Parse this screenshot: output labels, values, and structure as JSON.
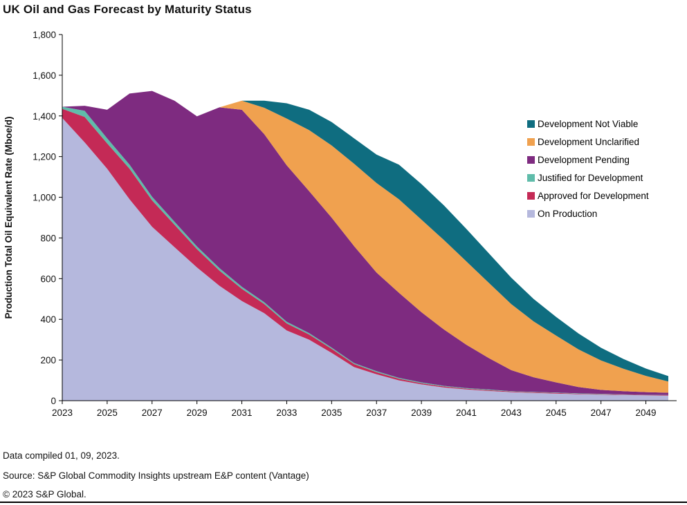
{
  "footer": {
    "line1": "Data compiled 01, 09, 2023.",
    "line2": "Source: S&P Global Commodity Insights upstream E&P content (Vantage)",
    "line3": "© 2023 S&P Global."
  },
  "chart_data": {
    "type": "area",
    "stacked": true,
    "title": "UK Oil and Gas Forecast by Maturity Status",
    "ylabel": "Production Total Oil Equivalent Rate (Mboe/d)",
    "xlabel": "",
    "ylim": [
      0,
      1800
    ],
    "y_tick_step": 200,
    "y_tick_labels": [
      "0",
      "200",
      "400",
      "600",
      "800",
      "1,000",
      "1,200",
      "1,400",
      "1,600",
      "1,800"
    ],
    "x": [
      2023,
      2024,
      2025,
      2026,
      2027,
      2028,
      2029,
      2030,
      2031,
      2032,
      2033,
      2034,
      2035,
      2036,
      2037,
      2038,
      2039,
      2040,
      2041,
      2042,
      2043,
      2044,
      2045,
      2046,
      2047,
      2048,
      2049,
      2050
    ],
    "x_tick_labels": [
      "2023",
      "2025",
      "2027",
      "2029",
      "2031",
      "2033",
      "2035",
      "2037",
      "2039",
      "2041",
      "2043",
      "2045",
      "2047",
      "2049"
    ],
    "grid": false,
    "legend_position": "right",
    "series": [
      {
        "name": "On Production",
        "color": "#b5b8dd",
        "values": [
          1390,
          1270,
          1140,
          990,
          855,
          755,
          655,
          565,
          490,
          430,
          345,
          300,
          235,
          165,
          130,
          100,
          80,
          65,
          55,
          48,
          42,
          38,
          35,
          32,
          30,
          28,
          26,
          25
        ]
      },
      {
        "name": "Approved for Development",
        "color": "#c42a56",
        "values": [
          45,
          125,
          125,
          150,
          130,
          110,
          90,
          75,
          60,
          45,
          35,
          25,
          20,
          15,
          10,
          8,
          6,
          5,
          4,
          4,
          3,
          3,
          3,
          2,
          2,
          2,
          2,
          2
        ]
      },
      {
        "name": "Justified for Development",
        "color": "#5fbcaa",
        "values": [
          10,
          30,
          25,
          20,
          18,
          15,
          13,
          12,
          10,
          9,
          8,
          7,
          6,
          5,
          5,
          4,
          4,
          3,
          3,
          3,
          2,
          2,
          2,
          2,
          2,
          1,
          1,
          1
        ]
      },
      {
        "name": "Development Pending",
        "color": "#7e2b80",
        "values": [
          0,
          25,
          140,
          350,
          520,
          595,
          640,
          790,
          870,
          826,
          769,
          698,
          639,
          575,
          485,
          418,
          345,
          277,
          213,
          155,
          103,
          72,
          50,
          31,
          19,
          16,
          13,
          11
        ]
      },
      {
        "name": "Development Unclarified",
        "color": "#f0a14f",
        "values": [
          0,
          0,
          0,
          0,
          0,
          0,
          0,
          0,
          45,
          130,
          230,
          300,
          355,
          405,
          440,
          460,
          455,
          440,
          410,
          370,
          325,
          275,
          230,
          185,
          145,
          110,
          80,
          55
        ]
      },
      {
        "name": "Development Not Viable",
        "color": "#0f6d80",
        "values": [
          0,
          0,
          0,
          0,
          0,
          0,
          0,
          0,
          0,
          35,
          75,
          100,
          115,
          125,
          140,
          170,
          175,
          170,
          160,
          145,
          130,
          110,
          92,
          78,
          62,
          48,
          36,
          27
        ]
      }
    ]
  }
}
